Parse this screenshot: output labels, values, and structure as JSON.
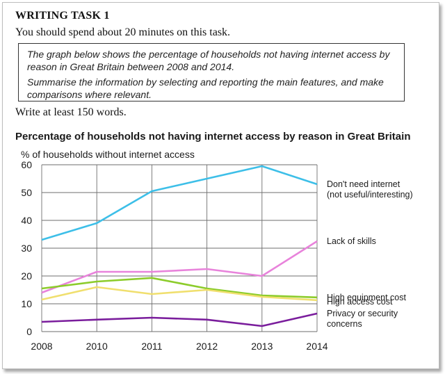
{
  "heading": "WRITING TASK 1",
  "intro": "You should spend about 20 minutes on this task.",
  "task_box": {
    "line1": "The graph below shows the percentage of households not having internet access by reason in Great Britain between 2008 and 2014.",
    "line2": "Summarise the information by selecting and reporting the main features, and make comparisons where relevant."
  },
  "instruction": "Write at least 150 words.",
  "chart_data": {
    "type": "line",
    "title": "Percentage of households not having internet access by reason in Great Britain",
    "ylabel": "% of households without internet access",
    "xlabel": "",
    "x": [
      "2008",
      "2010",
      "2011",
      "2012",
      "2013",
      "2014"
    ],
    "ylim": [
      0,
      60
    ],
    "yticks": [
      0,
      10,
      20,
      30,
      40,
      50,
      60
    ],
    "grid": true,
    "legend": "direct labels at right",
    "series": [
      {
        "name": "Don't need internet (not useful/interesting)",
        "label_lines": [
          "Don't need internet",
          "(not useful/interesting)"
        ],
        "color": "#3dbfe8",
        "values": [
          33,
          39,
          50.5,
          55,
          59.5,
          53
        ]
      },
      {
        "name": "Lack of skills",
        "label_lines": [
          "Lack of skills"
        ],
        "color": "#e883db",
        "values": [
          14,
          21.5,
          21.5,
          22.5,
          20,
          32.5
        ]
      },
      {
        "name": "High equipment cost",
        "label_lines": [
          "High equipment cost"
        ],
        "color": "#8ccc2b",
        "values": [
          15.5,
          18,
          19.3,
          15.5,
          13,
          12.3
        ]
      },
      {
        "name": "High access cost",
        "label_lines": [
          "High access cost"
        ],
        "color": "#f0df6e",
        "values": [
          11.5,
          16,
          13.5,
          15,
          12.5,
          11.3
        ]
      },
      {
        "name": "Privacy or security concerns",
        "label_lines": [
          "Privacy or security",
          "concerns"
        ],
        "color": "#7a1d9c",
        "values": [
          3.5,
          4.3,
          5,
          4.3,
          2,
          6.5
        ]
      }
    ]
  }
}
